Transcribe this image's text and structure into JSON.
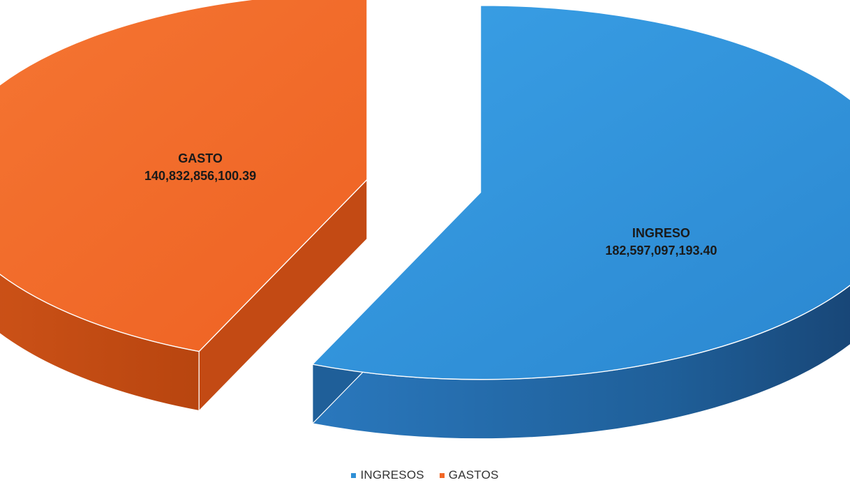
{
  "chart_data": {
    "type": "pie",
    "labels": [
      "INGRESOS",
      "GASTOS"
    ],
    "values": [
      182597097193.4,
      140832856100.39
    ],
    "data_labels": [
      {
        "category": "INGRESO",
        "value_text": "182,597,097,193.40"
      },
      {
        "category": "GASTO",
        "value_text": "140,832,856,100.39"
      }
    ],
    "colors": [
      "#2e8fd6",
      "#f26726"
    ],
    "side_colors": [
      "#1f5f99",
      "#c34a14"
    ],
    "legend": {
      "position": "bottom",
      "items": [
        {
          "label": "INGRESOS",
          "color": "#2e8fd6"
        },
        {
          "label": "GASTOS",
          "color": "#f26726"
        }
      ]
    },
    "style": "3d-exploded"
  }
}
